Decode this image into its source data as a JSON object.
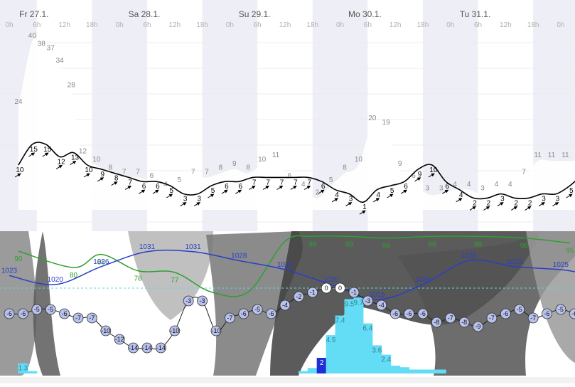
{
  "header": {
    "days": [
      {
        "label": "Fr 27.1.",
        "col": 1
      },
      {
        "label": "Sa 28.1.",
        "col": 5
      },
      {
        "label": "Su 29.1.",
        "col": 9
      },
      {
        "label": "Mo 30.1.",
        "col": 13
      },
      {
        "label": "Tu 31.1.",
        "col": 17
      }
    ],
    "hours": [
      "0h",
      "6h",
      "12h",
      "18h",
      "0h",
      "6h",
      "12h",
      "18h",
      "0h",
      "6h",
      "12h",
      "18h",
      "0h",
      "6h",
      "12h",
      "18h",
      "0h",
      "6h",
      "12h",
      "18h",
      "0h"
    ]
  },
  "colors": {
    "wind_line": "#000000",
    "humidity": "#2ea02e",
    "pressure": "#2b3fc4",
    "temp_marker": "#b9c2ec",
    "precip_bar": "#62ddf5",
    "precip_bar_dark": "#1f2ed6",
    "cloud": "#2a2a2a",
    "night_band": "#eeeef6"
  },
  "chart_data": [
    {
      "type": "area",
      "title": "",
      "x_unit": "hours from Fr 27.1. 0h",
      "series": [
        {
          "name": "",
          "kind": "gust",
          "x": [
            2,
            5,
            7,
            9,
            11,
            13.5,
            16,
            19,
            22,
            25,
            28,
            31,
            34,
            37,
            40,
            43,
            46,
            49,
            52,
            55,
            58,
            61,
            64,
            67,
            70,
            73,
            76,
            79,
            82,
            85,
            88,
            91,
            94,
            97,
            100,
            103,
            106,
            109,
            112,
            115,
            118,
            121,
            124
          ],
          "values": [
            24,
            40,
            38,
            37,
            34,
            28,
            12,
            10,
            8,
            7,
            7,
            6,
            4,
            5,
            7,
            7,
            8,
            9,
            8,
            10,
            11,
            6,
            4,
            2,
            5,
            8,
            10,
            20,
            19,
            9,
            6,
            3,
            3,
            4,
            4,
            3,
            4,
            4,
            7,
            11,
            11,
            11,
            11
          ]
        },
        {
          "name": "",
          "kind": "wind",
          "x": [
            2,
            5,
            8,
            11,
            14,
            17,
            20,
            23,
            26,
            29,
            32,
            35,
            38,
            41,
            44,
            47,
            50,
            53,
            56,
            59,
            62,
            65,
            68,
            71,
            74,
            77,
            80,
            83,
            86,
            89,
            92,
            95,
            98,
            101,
            104,
            107,
            110,
            113,
            116,
            119,
            122,
            124
          ],
          "values": [
            10,
            15,
            15,
            12,
            13,
            10,
            9,
            8,
            7,
            6,
            6,
            5,
            3,
            3,
            5,
            6,
            6,
            7,
            7,
            7,
            7,
            7,
            6,
            4,
            3,
            1,
            4,
            5,
            6,
            9,
            10,
            6,
            4,
            2,
            2,
            3,
            2,
            2,
            3,
            3,
            5,
            7
          ]
        }
      ]
    },
    {
      "type": "line",
      "title": "",
      "series": [
        {
          "name": "",
          "kind": "pressure",
          "x": [
            0,
            10,
            20,
            30,
            40,
            50,
            60,
            70,
            80,
            90,
            100,
            110,
            120,
            124
          ],
          "values": [
            1023,
            1020,
            1026,
            1031,
            1031,
            1028,
            1025,
            1020,
            1015,
            1020,
            1028,
            1026,
            1025,
            1024
          ],
          "labels": [
            "1023",
            "1020",
            "1026",
            "1031",
            "1031",
            "1028",
            "1025",
            "1020",
            "1015",
            "1020",
            "1028",
            "1026",
            "1025",
            ""
          ]
        },
        {
          "name": "",
          "kind": "humidity",
          "x": [
            2,
            14,
            20,
            28,
            36,
            44,
            52,
            60,
            66,
            74,
            82,
            92,
            102,
            112,
            122
          ],
          "values": [
            90,
            80,
            88,
            78,
            77,
            65,
            65,
            96,
            99,
            99,
            98,
            99,
            99,
            98,
            95
          ],
          "labels": [
            "90",
            "80",
            "88",
            "78",
            "77",
            "",
            "",
            "",
            "99",
            "99",
            "98",
            "99",
            "99",
            "98",
            "95"
          ]
        },
        {
          "name": "",
          "kind": "temperature",
          "x": [
            0,
            3,
            6,
            9,
            12,
            15,
            18,
            21,
            24,
            27,
            30,
            33,
            36,
            39,
            42,
            45,
            48,
            51,
            54,
            57,
            60,
            63,
            66,
            69,
            72,
            75,
            78,
            81,
            84,
            87,
            90,
            93,
            96,
            99,
            102,
            105,
            108,
            111,
            114,
            117,
            120,
            123
          ],
          "values": [
            -6,
            -6,
            -5,
            -5,
            -6,
            -7,
            -7,
            -10,
            -12,
            -14,
            -14,
            -14,
            -10,
            -3,
            -3,
            -10,
            -7,
            -6,
            -5,
            -6,
            -4,
            -2,
            -1,
            0,
            0,
            -1,
            -3,
            -4,
            -6,
            -6,
            -6,
            -8,
            -7,
            -8,
            -9,
            -7,
            -6,
            -5,
            -7,
            -6,
            -5,
            -6
          ]
        },
        {
          "name": "",
          "kind": "precipitation",
          "x": [
            3,
            5,
            64,
            66,
            68,
            70,
            72,
            74,
            76,
            78,
            80,
            82,
            84,
            86,
            88,
            90,
            92,
            94,
            96,
            98,
            100,
            102,
            104,
            106
          ],
          "values": [
            1.3,
            0.3,
            0.3,
            0.7,
            2,
            4.9,
            7.4,
            9.5,
            9.7,
            6.4,
            3.6,
            2.4,
            1.0,
            0.8,
            0.5,
            0.5,
            0.5,
            0.5,
            0,
            0,
            0,
            0,
            0,
            0
          ],
          "labels": [
            "1.3",
            "",
            "",
            "",
            "2",
            "4.9",
            "7.4",
            "9.5",
            "9.7",
            "6.4",
            "3.6",
            "2.4",
            "",
            "",
            "",
            "",
            "",
            "",
            "",
            "",
            "",
            "",
            "",
            ""
          ]
        }
      ]
    }
  ]
}
